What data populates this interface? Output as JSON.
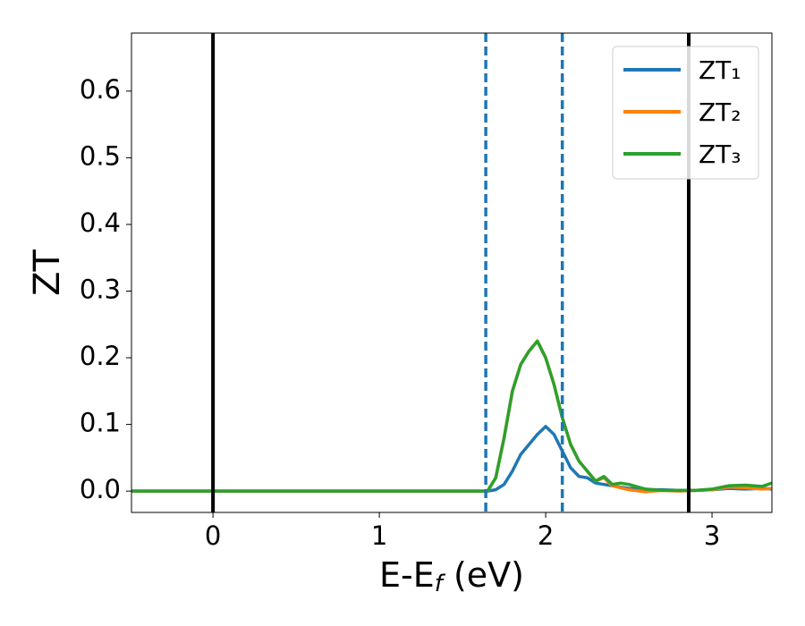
{
  "chart_data": {
    "type": "line",
    "ylabel": "ZT",
    "xlabel_parts": [
      "E-E",
      "f",
      " (eV)"
    ],
    "x": [
      -0.49,
      0,
      1,
      1.6,
      1.65,
      1.7,
      1.75,
      1.8,
      1.85,
      1.9,
      1.95,
      2.0,
      2.05,
      2.1,
      2.15,
      2.2,
      2.25,
      2.3,
      2.35,
      2.4,
      2.45,
      2.5,
      2.6,
      2.7,
      2.8,
      2.9,
      3.0,
      3.1,
      3.2,
      3.3,
      3.36
    ],
    "series": [
      {
        "name": "ZT₁",
        "color": "#1f77b4",
        "values": [
          0,
          0,
          0,
          0,
          0,
          0.002,
          0.01,
          0.03,
          0.055,
          0.07,
          0.085,
          0.097,
          0.085,
          0.06,
          0.035,
          0.022,
          0.02,
          0.012,
          0.01,
          0.008,
          0.006,
          0.004,
          0.002,
          0.002,
          0.001,
          0.001,
          0.002,
          0.004,
          0.003,
          0.004,
          0.003
        ]
      },
      {
        "name": "ZT₂",
        "color": "#ff7f0e",
        "values": [
          0,
          0,
          0,
          0,
          0,
          0.02,
          0.08,
          0.15,
          0.19,
          0.21,
          0.225,
          0.2,
          0.16,
          0.11,
          0.07,
          0.045,
          0.03,
          0.015,
          0.02,
          0.008,
          0.005,
          0.002,
          -0.001,
          0.001,
          0,
          0.001,
          0.002,
          0.006,
          0.005,
          0.003,
          0.004
        ]
      },
      {
        "name": "ZT₃",
        "color": "#2ca02c",
        "values": [
          0,
          0,
          0,
          0,
          0,
          0.02,
          0.08,
          0.15,
          0.19,
          0.21,
          0.225,
          0.2,
          0.16,
          0.11,
          0.07,
          0.045,
          0.03,
          0.015,
          0.022,
          0.01,
          0.012,
          0.01,
          0.003,
          0.001,
          0.001,
          0.001,
          0.003,
          0.008,
          0.009,
          0.007,
          0.012
        ]
      }
    ],
    "vlines": [
      {
        "x": 0,
        "color": "#000000",
        "style": "solid"
      },
      {
        "x": 2.86,
        "color": "#000000",
        "style": "solid"
      },
      {
        "x": 1.64,
        "color": "#1f77b4",
        "style": "dashed"
      },
      {
        "x": 2.1,
        "color": "#1f77b4",
        "style": "dashed"
      }
    ],
    "xlim": [
      -0.49,
      3.36
    ],
    "ylim": [
      -0.032,
      0.687
    ],
    "xticks": [
      0,
      1,
      2,
      3
    ],
    "yticks": [
      {
        "value": 0,
        "label": "0.0"
      },
      {
        "value": 0.1,
        "label": "0.1"
      },
      {
        "value": 0.2,
        "label": "0.2"
      },
      {
        "value": 0.3,
        "label": "0.3"
      },
      {
        "value": 0.4,
        "label": "0.4"
      },
      {
        "value": 0.5,
        "label": "0.5"
      },
      {
        "value": 0.6,
        "label": "0.6"
      }
    ],
    "grid": false,
    "legend": "upper right"
  }
}
